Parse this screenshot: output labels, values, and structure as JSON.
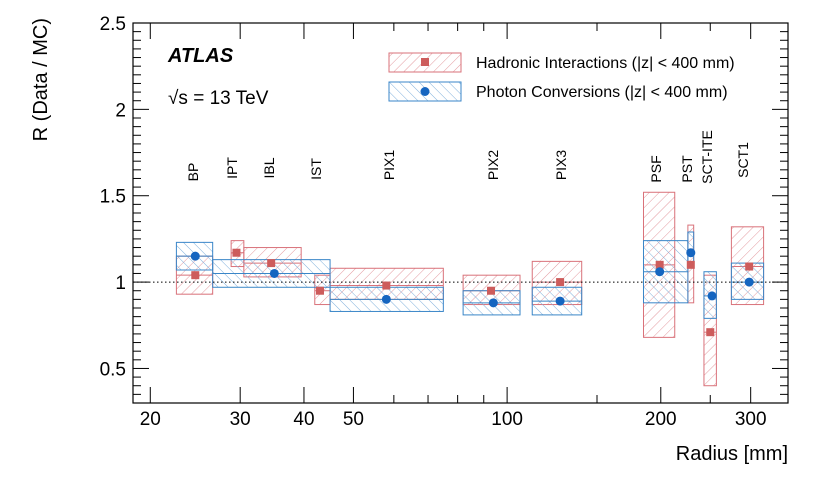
{
  "chart_data": {
    "type": "scatter",
    "experiment_label": "ATLAS",
    "energy_label_prefix": "√s",
    "energy_label_value": "= 13 TeV",
    "xlabel": "Radius [mm]",
    "ylabel": "R (Data / MC)",
    "xscale": "log",
    "xlim": [
      18.5,
      355
    ],
    "ylim": [
      0.3,
      2.5
    ],
    "reference_line": 1.0,
    "x_ticks": [
      {
        "value": 20,
        "label": "20"
      },
      {
        "value": 30,
        "label": "30"
      },
      {
        "value": 40,
        "label": "40"
      },
      {
        "value": 50,
        "label": "50"
      },
      {
        "value": 100,
        "label": "100"
      },
      {
        "value": 200,
        "label": "200"
      },
      {
        "value": 300,
        "label": "300"
      }
    ],
    "y_ticks": [
      {
        "value": 0.5,
        "label": "0.5"
      },
      {
        "value": 1.0,
        "label": "1"
      },
      {
        "value": 1.5,
        "label": "1.5"
      },
      {
        "value": 2.0,
        "label": "2"
      },
      {
        "value": 2.5,
        "label": "2.5"
      }
    ],
    "regions": [
      "BP",
      "IPT",
      "IBL",
      "IST",
      "PIX1",
      "PIX2",
      "PIX3",
      "PSF",
      "PST",
      "SCT-ITE",
      "SCT1"
    ],
    "legend": [
      {
        "key": "hadronic",
        "label": "Hadronic Interactions (|z| < 400 mm)"
      },
      {
        "key": "photon",
        "label": "Photon Conversions (|z| < 400 mm)"
      }
    ],
    "colors": {
      "hadronic": "#d9727a",
      "hadronic_marker": "#cd5c5c",
      "photon": "#3a86c8",
      "photon_marker": "#1565c0"
    },
    "series": [
      {
        "name": "Hadronic Interactions",
        "key": "hadronic",
        "points": [
          {
            "region": "BP",
            "x": 24.5,
            "y": 1.04,
            "x_low": 22.5,
            "x_high": 26.5,
            "y_low": 0.93,
            "y_high": 1.15
          },
          {
            "region": "IPT",
            "x": 29.5,
            "y": 1.17,
            "x_low": 28.8,
            "x_high": 30.5,
            "y_low": 1.09,
            "y_high": 1.24
          },
          {
            "region": "IBL",
            "x": 34.5,
            "y": 1.11,
            "x_low": 30.5,
            "x_high": 39.5,
            "y_low": 1.03,
            "y_high": 1.2
          },
          {
            "region": "IST",
            "x": 43.0,
            "y": 0.95,
            "x_low": 42.0,
            "x_high": 45.0,
            "y_low": 0.87,
            "y_high": 1.04
          },
          {
            "region": "PIX1",
            "x": 58.0,
            "y": 0.98,
            "x_low": 45.0,
            "x_high": 75.0,
            "y_low": 0.9,
            "y_high": 1.08
          },
          {
            "region": "PIX2",
            "x": 93.0,
            "y": 0.95,
            "x_low": 82.0,
            "x_high": 106.0,
            "y_low": 0.87,
            "y_high": 1.04
          },
          {
            "region": "PIX3",
            "x": 127.0,
            "y": 1.0,
            "x_low": 112.0,
            "x_high": 140.0,
            "y_low": 0.87,
            "y_high": 1.12
          },
          {
            "region": "PSF",
            "x": 199.0,
            "y": 1.1,
            "x_low": 185.0,
            "x_high": 213.0,
            "y_low": 0.68,
            "y_high": 1.52
          },
          {
            "region": "PST",
            "x": 229.0,
            "y": 1.1,
            "x_low": 226.0,
            "x_high": 232.0,
            "y_low": 0.88,
            "y_high": 1.33
          },
          {
            "region": "SCT-ITE",
            "x": 250.0,
            "y": 0.71,
            "x_low": 243.0,
            "x_high": 257.0,
            "y_low": 0.4,
            "y_high": 1.04
          },
          {
            "region": "SCT1",
            "x": 298.0,
            "y": 1.09,
            "x_low": 275.0,
            "x_high": 318.0,
            "y_low": 0.87,
            "y_high": 1.32
          }
        ]
      },
      {
        "name": "Photon Conversions",
        "key": "photon",
        "points": [
          {
            "region": "BP",
            "x": 24.5,
            "y": 1.15,
            "x_low": 22.5,
            "x_high": 26.5,
            "y_low": 1.07,
            "y_high": 1.23
          },
          {
            "region": "IPT+IBL",
            "x": 35.0,
            "y": 1.05,
            "x_low": 26.5,
            "x_high": 45.0,
            "y_low": 0.97,
            "y_high": 1.13
          },
          {
            "region": "PIX1",
            "x": 58.0,
            "y": 0.9,
            "x_low": 45.0,
            "x_high": 75.0,
            "y_low": 0.83,
            "y_high": 0.97
          },
          {
            "region": "PIX2",
            "x": 94.0,
            "y": 0.88,
            "x_low": 82.0,
            "x_high": 106.0,
            "y_low": 0.81,
            "y_high": 0.95
          },
          {
            "region": "PIX3",
            "x": 127.0,
            "y": 0.89,
            "x_low": 112.0,
            "x_high": 140.0,
            "y_low": 0.81,
            "y_high": 0.97
          },
          {
            "region": "PSF",
            "x": 199.0,
            "y": 1.06,
            "x_low": 185.0,
            "x_high": 226.0,
            "y_low": 0.88,
            "y_high": 1.24
          },
          {
            "region": "PST",
            "x": 229.0,
            "y": 1.17,
            "x_low": 226.0,
            "x_high": 232.0,
            "y_low": 1.1,
            "y_high": 1.29
          },
          {
            "region": "SCT-ITE",
            "x": 252.0,
            "y": 0.92,
            "x_low": 243.0,
            "x_high": 257.0,
            "y_low": 0.79,
            "y_high": 1.06
          },
          {
            "region": "SCT1",
            "x": 298.0,
            "y": 1.0,
            "x_low": 275.0,
            "x_high": 318.0,
            "y_low": 0.9,
            "y_high": 1.11
          }
        ]
      }
    ]
  }
}
